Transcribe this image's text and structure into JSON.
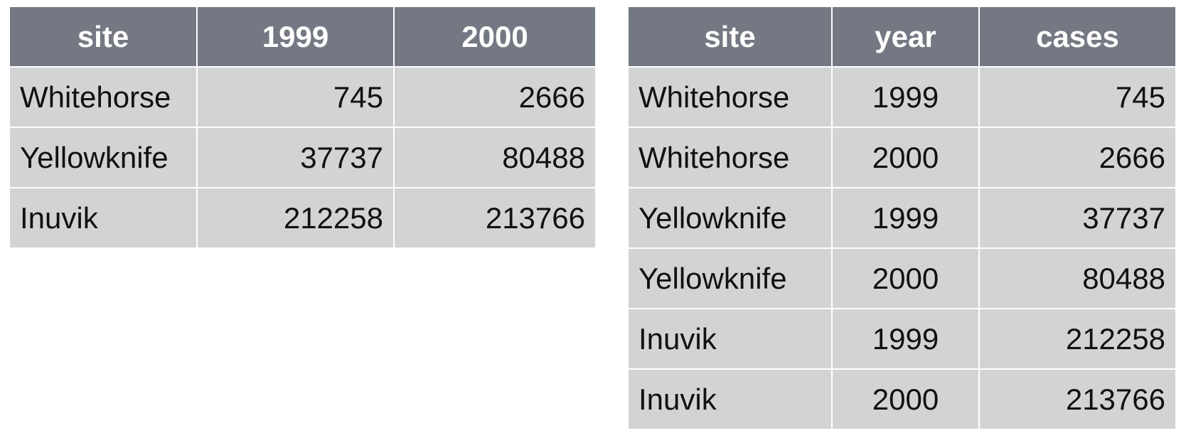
{
  "wide_table": {
    "headers": [
      "site",
      "1999",
      "2000"
    ],
    "rows": [
      [
        "Whitehorse",
        "745",
        "2666"
      ],
      [
        "Yellowknife",
        "37737",
        "80488"
      ],
      [
        "Inuvik",
        "212258",
        "213766"
      ]
    ]
  },
  "long_table": {
    "headers": [
      "site",
      "year",
      "cases"
    ],
    "rows": [
      [
        "Whitehorse",
        "1999",
        "745"
      ],
      [
        "Whitehorse",
        "2000",
        "2666"
      ],
      [
        "Yellowknife",
        "1999",
        "37737"
      ],
      [
        "Yellowknife",
        "2000",
        "80488"
      ],
      [
        "Inuvik",
        "1999",
        "212258"
      ],
      [
        "Inuvik",
        "2000",
        "213766"
      ]
    ]
  }
}
